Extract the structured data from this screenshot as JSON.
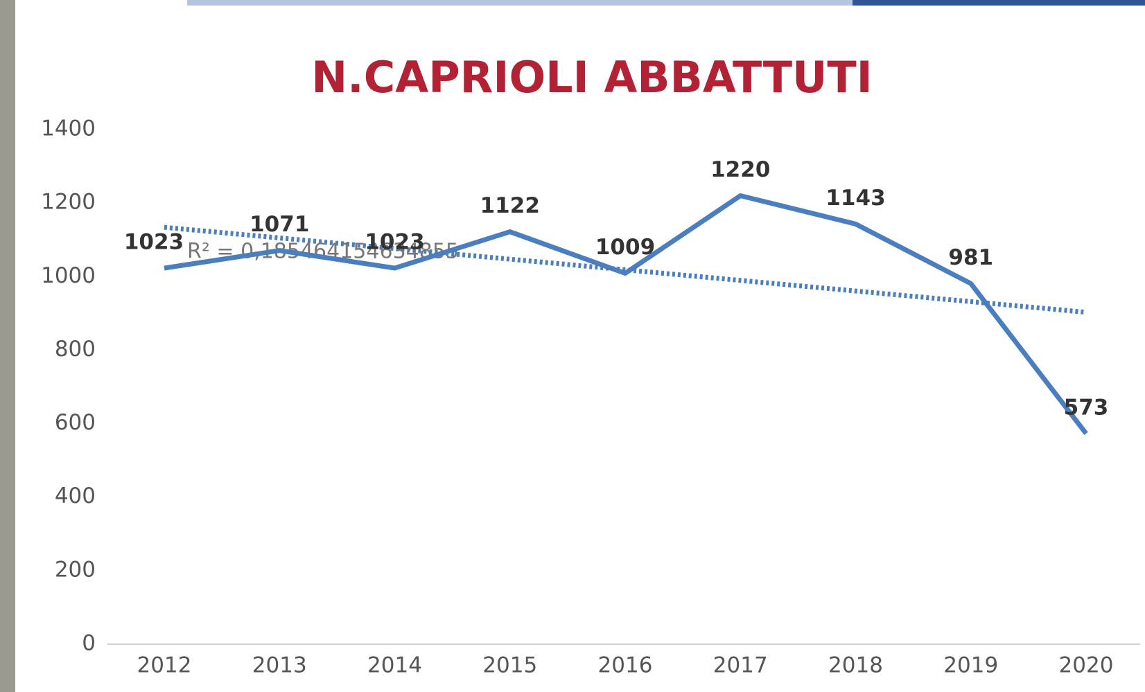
{
  "chart_data": {
    "type": "line",
    "title": "N.CAPRIOLI ABBATTUTI",
    "categories": [
      "2012",
      "2013",
      "2014",
      "2015",
      "2016",
      "2017",
      "2018",
      "2019",
      "2020"
    ],
    "series": [
      {
        "color": "#4a7ebf",
        "values": [
          1023,
          1071,
          1023,
          1122,
          1009,
          1220,
          1143,
          981,
          573
        ]
      }
    ],
    "trendline": {
      "values": [
        1134,
        903
      ],
      "label": "R² = 0,185464154634855",
      "color": "#4a7ebf"
    },
    "ylim": [
      0,
      1400
    ],
    "yticks": [
      0,
      200,
      400,
      600,
      800,
      1000,
      1200,
      1400
    ]
  }
}
